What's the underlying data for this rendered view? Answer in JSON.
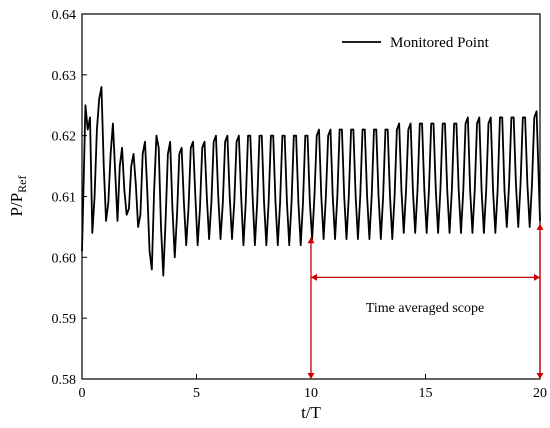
{
  "chart_data": {
    "type": "line",
    "xlabel": "t/T",
    "ylabel_main": "P/P",
    "ylabel_sub": "Ref",
    "xlim": [
      0,
      20
    ],
    "ylim": [
      0.58,
      0.64
    ],
    "xticks": [
      0,
      5,
      10,
      15,
      20
    ],
    "yticks": [
      0.58,
      0.59,
      0.6,
      0.61,
      0.62,
      0.63,
      0.64
    ],
    "ytick_labels": [
      "0.58",
      "0.59",
      "0.60",
      "0.61",
      "0.62",
      "0.63",
      "0.64"
    ],
    "xtick_labels": [
      "0",
      "5",
      "10",
      "15",
      "20"
    ],
    "grid": false,
    "legend_position": "top-right",
    "series": [
      {
        "name": "Monitored Point",
        "color": "#000000",
        "x": [
          0.0,
          0.15,
          0.25,
          0.35,
          0.45,
          0.55,
          0.65,
          0.75,
          0.85,
          0.95,
          1.05,
          1.15,
          1.25,
          1.35,
          1.45,
          1.55,
          1.65,
          1.75,
          1.85,
          1.95,
          2.05,
          2.15,
          2.25,
          2.35,
          2.45,
          2.55,
          2.65,
          2.75,
          2.85,
          2.95,
          3.05,
          3.15,
          3.25,
          3.35,
          3.45,
          3.55,
          3.65,
          3.75,
          3.85,
          3.95,
          4.05,
          4.15,
          4.25,
          4.35,
          4.45,
          4.55,
          4.65,
          4.75,
          4.85,
          4.95,
          5.05,
          5.15,
          5.25,
          5.35,
          5.45,
          5.55,
          5.65,
          5.75,
          5.85,
          5.95,
          6.05,
          6.15,
          6.25,
          6.35,
          6.45,
          6.55,
          6.65,
          6.75,
          6.85,
          6.95,
          7.05,
          7.15,
          7.25,
          7.35,
          7.45,
          7.55,
          7.65,
          7.75,
          7.85,
          7.95,
          8.05,
          8.15,
          8.25,
          8.35,
          8.45,
          8.55,
          8.65,
          8.75,
          8.85,
          8.95,
          9.05,
          9.15,
          9.25,
          9.35,
          9.45,
          9.55,
          9.65,
          9.75,
          9.85,
          9.95,
          10.05,
          10.15,
          10.25,
          10.35,
          10.45,
          10.55,
          10.65,
          10.75,
          10.85,
          10.95,
          11.05,
          11.15,
          11.25,
          11.35,
          11.45,
          11.55,
          11.65,
          11.75,
          11.85,
          11.95,
          12.05,
          12.15,
          12.25,
          12.35,
          12.45,
          12.55,
          12.65,
          12.75,
          12.85,
          12.95,
          13.05,
          13.15,
          13.25,
          13.35,
          13.45,
          13.55,
          13.65,
          13.75,
          13.85,
          13.95,
          14.05,
          14.15,
          14.25,
          14.35,
          14.45,
          14.55,
          14.65,
          14.75,
          14.85,
          14.95,
          15.05,
          15.15,
          15.25,
          15.35,
          15.45,
          15.55,
          15.65,
          15.75,
          15.85,
          15.95,
          16.05,
          16.15,
          16.25,
          16.35,
          16.45,
          16.55,
          16.65,
          16.75,
          16.85,
          16.95,
          17.05,
          17.15,
          17.25,
          17.35,
          17.45,
          17.55,
          17.65,
          17.75,
          17.85,
          17.95,
          18.05,
          18.15,
          18.25,
          18.35,
          18.45,
          18.55,
          18.65,
          18.75,
          18.85,
          18.95,
          19.05,
          19.15,
          19.25,
          19.35,
          19.45,
          19.55,
          19.65,
          19.75,
          19.85,
          19.95,
          20.0
        ],
        "y": [
          0.601,
          0.625,
          0.621,
          0.623,
          0.604,
          0.61,
          0.621,
          0.626,
          0.628,
          0.615,
          0.606,
          0.609,
          0.617,
          0.622,
          0.614,
          0.606,
          0.615,
          0.618,
          0.611,
          0.607,
          0.608,
          0.615,
          0.617,
          0.612,
          0.605,
          0.607,
          0.617,
          0.619,
          0.611,
          0.601,
          0.598,
          0.611,
          0.62,
          0.618,
          0.605,
          0.597,
          0.606,
          0.617,
          0.619,
          0.608,
          0.6,
          0.607,
          0.617,
          0.618,
          0.609,
          0.602,
          0.608,
          0.618,
          0.619,
          0.61,
          0.602,
          0.608,
          0.618,
          0.619,
          0.61,
          0.603,
          0.609,
          0.619,
          0.62,
          0.61,
          0.603,
          0.609,
          0.619,
          0.62,
          0.61,
          0.603,
          0.609,
          0.619,
          0.62,
          0.61,
          0.602,
          0.609,
          0.62,
          0.62,
          0.61,
          0.602,
          0.609,
          0.62,
          0.62,
          0.609,
          0.602,
          0.609,
          0.62,
          0.62,
          0.609,
          0.602,
          0.609,
          0.62,
          0.62,
          0.609,
          0.602,
          0.609,
          0.62,
          0.62,
          0.609,
          0.602,
          0.609,
          0.62,
          0.62,
          0.609,
          0.603,
          0.61,
          0.62,
          0.621,
          0.61,
          0.603,
          0.61,
          0.62,
          0.621,
          0.61,
          0.603,
          0.61,
          0.621,
          0.621,
          0.61,
          0.603,
          0.61,
          0.621,
          0.621,
          0.61,
          0.603,
          0.61,
          0.621,
          0.621,
          0.61,
          0.603,
          0.61,
          0.621,
          0.621,
          0.61,
          0.603,
          0.61,
          0.621,
          0.621,
          0.61,
          0.603,
          0.61,
          0.621,
          0.622,
          0.611,
          0.604,
          0.611,
          0.621,
          0.622,
          0.611,
          0.604,
          0.611,
          0.622,
          0.622,
          0.611,
          0.604,
          0.611,
          0.622,
          0.622,
          0.611,
          0.604,
          0.611,
          0.622,
          0.622,
          0.611,
          0.604,
          0.611,
          0.622,
          0.622,
          0.611,
          0.604,
          0.611,
          0.622,
          0.623,
          0.611,
          0.604,
          0.611,
          0.622,
          0.623,
          0.611,
          0.604,
          0.611,
          0.622,
          0.623,
          0.611,
          0.604,
          0.611,
          0.623,
          0.623,
          0.611,
          0.605,
          0.612,
          0.623,
          0.623,
          0.612,
          0.605,
          0.612,
          0.623,
          0.623,
          0.612,
          0.605,
          0.612,
          0.623,
          0.624,
          0.612,
          0.606
        ]
      }
    ],
    "annotation": {
      "text": "Time averaged scope",
      "x_start": 10,
      "x_end": 20,
      "y_arrow": 0.5967,
      "color": "#cc0000"
    }
  }
}
